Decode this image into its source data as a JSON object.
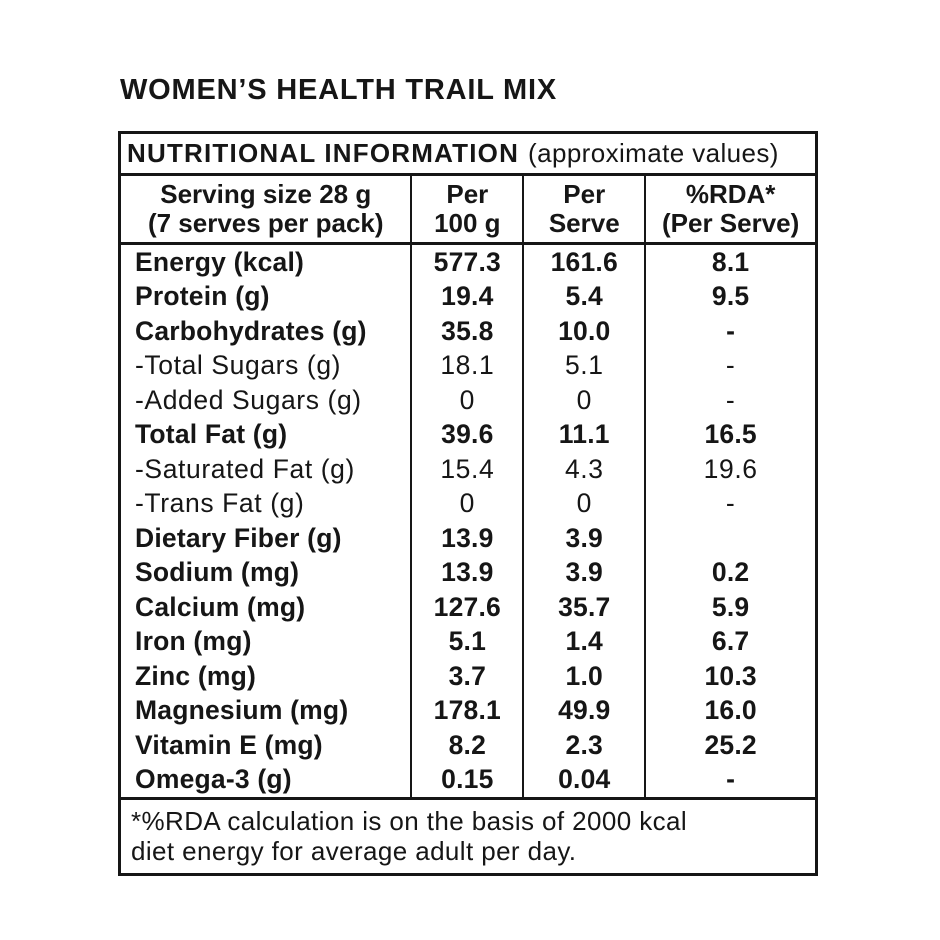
{
  "product": {
    "title": "WOMEN’S HEALTH TRAIL MIX"
  },
  "table": {
    "header": {
      "title": "NUTRITIONAL INFORMATION",
      "subtitle": "(approximate values)"
    },
    "columns": [
      {
        "line1": "Serving size 28 g",
        "line2": "(7 serves per pack)"
      },
      {
        "line1": "Per",
        "line2": "100 g"
      },
      {
        "line1": "Per",
        "line2": "Serve"
      },
      {
        "line1": "%RDA*",
        "line2": "(Per Serve)"
      }
    ],
    "rows": [
      {
        "label": "Energy (kcal)",
        "per100": "577.3",
        "serve": "161.6",
        "rda": "8.1",
        "bold": true
      },
      {
        "label": "Protein (g)",
        "per100": "19.4",
        "serve": "5.4",
        "rda": "9.5",
        "bold": true
      },
      {
        "label": "Carbohydrates (g)",
        "per100": "35.8",
        "serve": "10.0",
        "rda": "-",
        "bold": true
      },
      {
        "label": "-Total Sugars (g)",
        "per100": "18.1",
        "serve": "5.1",
        "rda": "-",
        "bold": false
      },
      {
        "label": "-Added Sugars (g)",
        "per100": "0",
        "serve": "0",
        "rda": "-",
        "bold": false
      },
      {
        "label": "Total Fat (g)",
        "per100": "39.6",
        "serve": "11.1",
        "rda": "16.5",
        "bold": true
      },
      {
        "label": "-Saturated Fat (g)",
        "per100": "15.4",
        "serve": "4.3",
        "rda": "19.6",
        "bold": false
      },
      {
        "label": "-Trans Fat (g)",
        "per100": "0",
        "serve": "0",
        "rda": "-",
        "bold": false
      },
      {
        "label": "Dietary Fiber (g)",
        "per100": "13.9",
        "serve": "3.9",
        "rda": "",
        "bold": true
      },
      {
        "label": "Sodium (mg)",
        "per100": "13.9",
        "serve": "3.9",
        "rda": "0.2",
        "bold": true
      },
      {
        "label": "Calcium (mg)",
        "per100": "127.6",
        "serve": "35.7",
        "rda": "5.9",
        "bold": true
      },
      {
        "label": "Iron (mg)",
        "per100": "5.1",
        "serve": "1.4",
        "rda": "6.7",
        "bold": true
      },
      {
        "label": "Zinc (mg)",
        "per100": "3.7",
        "serve": "1.0",
        "rda": "10.3",
        "bold": true
      },
      {
        "label": "Magnesium (mg)",
        "per100": "178.1",
        "serve": "49.9",
        "rda": "16.0",
        "bold": true
      },
      {
        "label": "Vitamin E (mg)",
        "per100": "8.2",
        "serve": "2.3",
        "rda": "25.2",
        "bold": true
      },
      {
        "label": "Omega-3 (g)",
        "per100": "0.15",
        "serve": "0.04",
        "rda": "-",
        "bold": true
      }
    ],
    "footnote": {
      "line1": "*%RDA calculation is on the basis of 2000 kcal",
      "line2": "diet energy for average adult per day."
    }
  },
  "colors": {
    "text": "#161616",
    "border": "#161616",
    "background": "#ffffff"
  }
}
